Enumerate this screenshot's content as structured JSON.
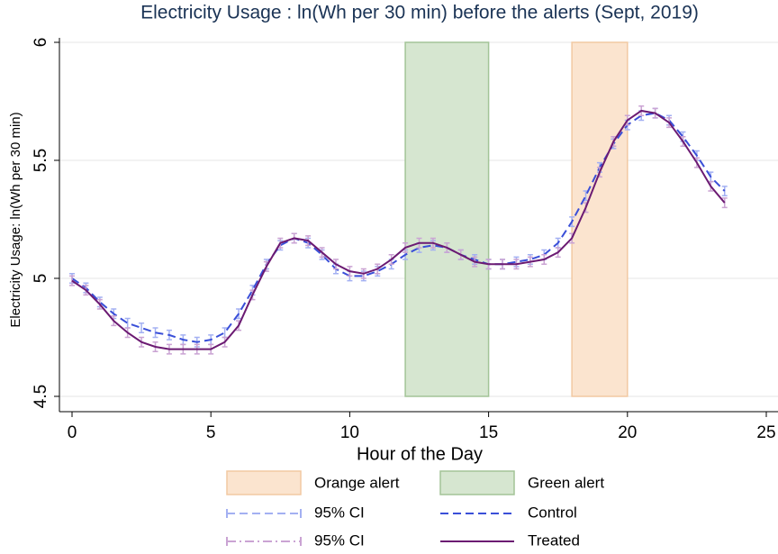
{
  "chart_data": {
    "type": "line",
    "title": "Electricity Usage : ln(Wh per 30 min) before the alerts (Sept, 2019)",
    "x_label": "Hour of the Day",
    "y_label": "Electricity Usage: ln(Wh per 30 min)",
    "x": [
      0,
      0.5,
      1,
      1.5,
      2,
      2.5,
      3,
      3.5,
      4,
      4.5,
      5,
      5.5,
      6,
      6.5,
      7,
      7.5,
      8,
      8.5,
      9,
      9.5,
      10,
      10.5,
      11,
      11.5,
      12,
      12.5,
      13,
      13.5,
      14,
      14.5,
      15,
      15.5,
      16,
      16.5,
      17,
      17.5,
      18,
      18.5,
      19,
      19.5,
      20,
      20.5,
      21,
      21.5,
      22,
      22.5,
      23,
      23.5
    ],
    "regions": [
      {
        "name": "Orange alert",
        "color": "#fbe4cf",
        "edge": "#f2c9a2",
        "x": [
          18,
          20
        ]
      },
      {
        "name": "Green alert",
        "color": "#d6e6d0",
        "edge": "#a3c497",
        "x": [
          12,
          15
        ]
      }
    ],
    "series": [
      {
        "name": "Control",
        "color": "#3a4fd8",
        "linestyle": "dash",
        "ci_name": "95% CI",
        "ci_color": "#a3b0f2",
        "ci_linestyle": "dash",
        "values": [
          5.0,
          4.96,
          4.9,
          4.85,
          4.81,
          4.79,
          4.77,
          4.76,
          4.74,
          4.73,
          4.74,
          4.77,
          4.85,
          4.95,
          5.06,
          5.14,
          5.17,
          5.15,
          5.1,
          5.04,
          5.01,
          5.01,
          5.03,
          5.06,
          5.1,
          5.13,
          5.14,
          5.13,
          5.1,
          5.08,
          5.06,
          5.06,
          5.07,
          5.08,
          5.1,
          5.15,
          5.24,
          5.35,
          5.47,
          5.57,
          5.65,
          5.69,
          5.7,
          5.67,
          5.6,
          5.52,
          5.43,
          5.37
        ],
        "errors": [
          0.02,
          0.02,
          0.02,
          0.02,
          0.02,
          0.02,
          0.02,
          0.02,
          0.02,
          0.02,
          0.02,
          0.02,
          0.02,
          0.02,
          0.02,
          0.02,
          0.02,
          0.02,
          0.02,
          0.02,
          0.02,
          0.02,
          0.02,
          0.02,
          0.02,
          0.02,
          0.02,
          0.02,
          0.02,
          0.02,
          0.02,
          0.02,
          0.02,
          0.02,
          0.02,
          0.02,
          0.02,
          0.02,
          0.02,
          0.02,
          0.02,
          0.02,
          0.02,
          0.02,
          0.02,
          0.02,
          0.02,
          0.02
        ]
      },
      {
        "name": "Treated",
        "color": "#6b1a72",
        "linestyle": "solid",
        "ci_name": "95% CI",
        "ci_color": "#caa3d3",
        "ci_linestyle": "dashdot",
        "values": [
          4.99,
          4.95,
          4.89,
          4.82,
          4.77,
          4.73,
          4.71,
          4.7,
          4.7,
          4.7,
          4.7,
          4.73,
          4.8,
          4.93,
          5.05,
          5.15,
          5.17,
          5.16,
          5.11,
          5.06,
          5.03,
          5.02,
          5.04,
          5.08,
          5.13,
          5.15,
          5.15,
          5.13,
          5.1,
          5.07,
          5.06,
          5.06,
          5.06,
          5.07,
          5.08,
          5.11,
          5.17,
          5.3,
          5.45,
          5.58,
          5.67,
          5.71,
          5.7,
          5.66,
          5.58,
          5.49,
          5.39,
          5.32
        ],
        "errors": [
          0.02,
          0.02,
          0.02,
          0.02,
          0.02,
          0.02,
          0.02,
          0.02,
          0.02,
          0.02,
          0.02,
          0.02,
          0.02,
          0.02,
          0.02,
          0.02,
          0.02,
          0.02,
          0.02,
          0.02,
          0.02,
          0.02,
          0.02,
          0.02,
          0.02,
          0.02,
          0.02,
          0.02,
          0.02,
          0.02,
          0.02,
          0.02,
          0.02,
          0.02,
          0.02,
          0.02,
          0.02,
          0.02,
          0.02,
          0.02,
          0.02,
          0.02,
          0.02,
          0.02,
          0.02,
          0.02,
          0.02,
          0.02
        ]
      }
    ],
    "xlim": [
      0,
      25
    ],
    "xticks": [
      0,
      5,
      10,
      15,
      20,
      25
    ],
    "ylim": [
      4.5,
      6
    ],
    "yticks": [
      4.5,
      5,
      5.5,
      6
    ],
    "grid": true
  }
}
